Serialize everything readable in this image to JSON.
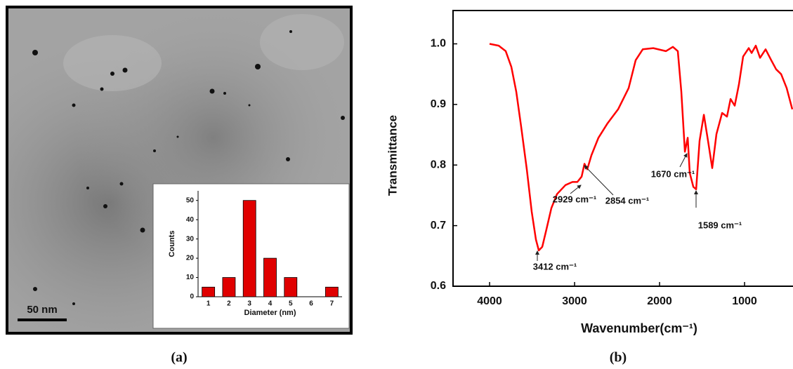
{
  "panel_labels": [
    "(a)",
    "(b)"
  ],
  "scale_bar": "50 nm",
  "chart_data": [
    {
      "type": "bar",
      "x_label": "Diameter (nm)",
      "y_label": "Counts",
      "categories": [
        "1",
        "2",
        "3",
        "4",
        "5",
        "6",
        "7"
      ],
      "values": [
        5,
        10,
        50,
        20,
        10,
        0,
        5
      ],
      "color": "#e00000",
      "ylim": [
        0,
        55
      ],
      "yticks": [
        0,
        10,
        20,
        30,
        40,
        50
      ]
    },
    {
      "type": "line",
      "x_label": "Wavenumber(cm⁻¹)",
      "y_label": "Transmittance",
      "x": [
        4000,
        3893,
        3810,
        3744,
        3686,
        3628,
        3562,
        3504,
        3455,
        3421,
        3380,
        3331,
        3273,
        3207,
        3107,
        3025,
        2967,
        2917,
        2884,
        2851,
        2802,
        2719,
        2612,
        2488,
        2364,
        2281,
        2198,
        2074,
        1926,
        1843,
        1785,
        1744,
        1702,
        1669,
        1645,
        1603,
        1570,
        1529,
        1479,
        1430,
        1380,
        1331,
        1264,
        1207,
        1165,
        1116,
        1066,
        1017,
        951,
        917,
        868,
        818,
        752,
        686,
        628,
        570,
        504,
        438
      ],
      "values": [
        1.0,
        0.997,
        0.988,
        0.962,
        0.921,
        0.863,
        0.793,
        0.723,
        0.677,
        0.659,
        0.665,
        0.694,
        0.729,
        0.752,
        0.767,
        0.772,
        0.772,
        0.781,
        0.802,
        0.793,
        0.816,
        0.845,
        0.869,
        0.892,
        0.927,
        0.973,
        0.991,
        0.993,
        0.988,
        0.995,
        0.988,
        0.921,
        0.822,
        0.845,
        0.787,
        0.764,
        0.76,
        0.84,
        0.883,
        0.84,
        0.795,
        0.851,
        0.886,
        0.88,
        0.909,
        0.898,
        0.933,
        0.979,
        0.993,
        0.985,
        0.997,
        0.977,
        0.991,
        0.973,
        0.958,
        0.95,
        0.927,
        0.892
      ],
      "color": "#ff0000",
      "xlim": [
        4430,
        430
      ],
      "xticks": [
        4000,
        3000,
        2000,
        1000
      ],
      "ylim": [
        0.6,
        1.055
      ],
      "yticks": [
        {
          "value": 0.6,
          "label": "0.6"
        },
        {
          "value": 0.7,
          "label": "0.7"
        },
        {
          "value": 0.8,
          "label": "0.8"
        },
        {
          "value": 0.9,
          "label": "0.9"
        },
        {
          "value": 1.0,
          "label": "1.0"
        }
      ],
      "annotations": [
        {
          "text": "3412 cm⁻¹"
        },
        {
          "text": "2929 cm⁻¹"
        },
        {
          "text": "2854 cm⁻¹"
        },
        {
          "text": "1670 cm⁻¹"
        },
        {
          "text": "1589 cm⁻¹"
        }
      ]
    }
  ]
}
